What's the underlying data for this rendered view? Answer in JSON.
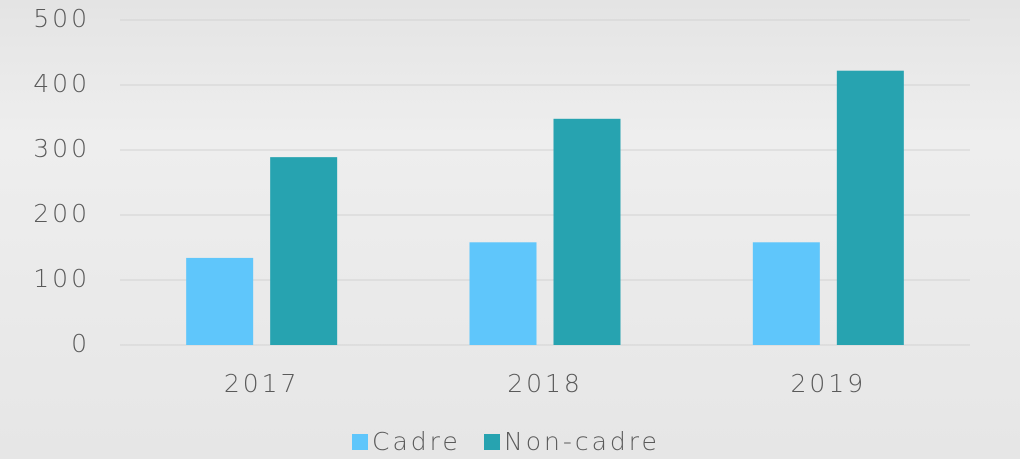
{
  "chart_data": {
    "type": "bar",
    "categories": [
      "2017",
      "2018",
      "2019"
    ],
    "series": [
      {
        "name": "Cadre",
        "color": "#5fc6fb",
        "values": [
          134,
          158,
          158
        ]
      },
      {
        "name": "Non-cadre",
        "color": "#27a3b0",
        "values": [
          289,
          348,
          422
        ]
      }
    ],
    "ylim": [
      0,
      500
    ],
    "yticks": [
      0,
      100,
      200,
      300,
      400,
      500
    ],
    "grid": true,
    "legend": "bottom"
  }
}
